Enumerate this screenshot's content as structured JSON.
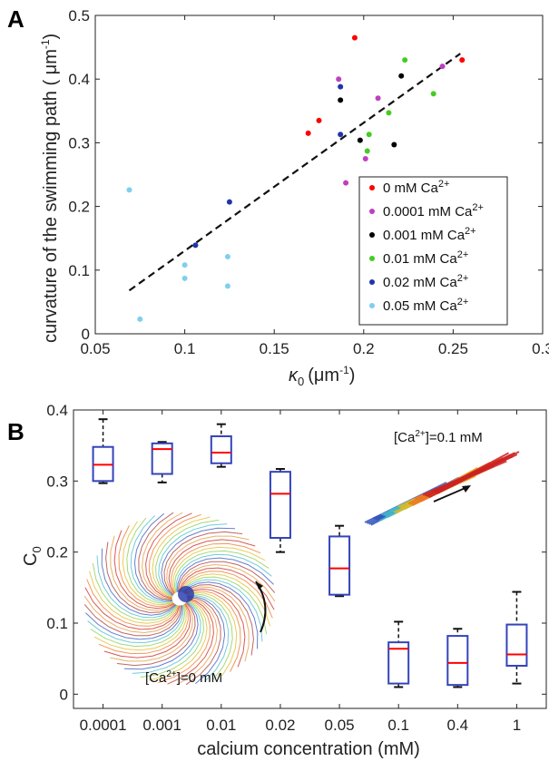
{
  "panels": {
    "a": "A",
    "b": "B"
  },
  "chart_data": [
    {
      "type": "scatter",
      "panel": "A",
      "xlabel_symbol": "κ",
      "xlabel_sub": "0",
      "xlabel_unit": "(μm",
      "xlabel_exp": "-1",
      "xlabel_close": ")",
      "ylabel": "curvature of the swimming path ( μm",
      "ylabel_exp": "-1",
      "ylabel_close": ")",
      "xlim": [
        0.05,
        0.3
      ],
      "ylim": [
        0,
        0.5
      ],
      "xticks": [
        "0.05",
        "0.1",
        "0.15",
        "0.2",
        "0.25",
        "0.3"
      ],
      "yticks": [
        "0",
        "0.1",
        "0.2",
        "0.3",
        "0.4",
        "0.5"
      ],
      "legend_position": "right",
      "grid": false,
      "series": [
        {
          "name": "0 mM Ca",
          "sup": "2+",
          "color": "#ff0000",
          "points": [
            [
              0.169,
              0.315
            ],
            [
              0.175,
              0.335
            ],
            [
              0.195,
              0.465
            ],
            [
              0.255,
              0.43
            ]
          ]
        },
        {
          "name": "0.0001 mM Ca",
          "sup": "2+",
          "color": "#bf40bf",
          "points": [
            [
              0.186,
              0.4
            ],
            [
              0.19,
              0.237
            ],
            [
              0.201,
              0.275
            ],
            [
              0.208,
              0.37
            ],
            [
              0.244,
              0.42
            ]
          ]
        },
        {
          "name": "0.001 mM Ca",
          "sup": "2+",
          "color": "#000000",
          "points": [
            [
              0.187,
              0.367
            ],
            [
              0.198,
              0.304
            ],
            [
              0.217,
              0.297
            ],
            [
              0.221,
              0.405
            ]
          ]
        },
        {
          "name": "0.01 mM Ca",
          "sup": "2+",
          "color": "#44cc22",
          "points": [
            [
              0.202,
              0.287
            ],
            [
              0.203,
              0.313
            ],
            [
              0.214,
              0.347
            ],
            [
              0.223,
              0.43
            ],
            [
              0.239,
              0.377
            ]
          ]
        },
        {
          "name": "0.02 mM Ca",
          "sup": "2+",
          "color": "#2233aa",
          "points": [
            [
              0.106,
              0.139
            ],
            [
              0.125,
              0.207
            ],
            [
              0.187,
              0.388
            ],
            [
              0.187,
              0.313
            ]
          ]
        },
        {
          "name": "0.05 mM Ca",
          "sup": "2+",
          "color": "#7fcfee",
          "points": [
            [
              0.069,
              0.226
            ],
            [
              0.075,
              0.023
            ],
            [
              0.1,
              0.108
            ],
            [
              0.1,
              0.087
            ],
            [
              0.124,
              0.121
            ],
            [
              0.124,
              0.075
            ]
          ]
        }
      ],
      "fit_line": {
        "style": "dashed",
        "points": [
          [
            0.069,
            0.068
          ],
          [
            0.254,
            0.44
          ]
        ]
      }
    },
    {
      "type": "box",
      "panel": "B",
      "ylabel": "C",
      "ylabel_sub": "0",
      "xlabel": "calcium concentration (mM)",
      "ylim": [
        -0.02,
        0.4
      ],
      "yticks": [
        "0",
        "0.1",
        "0.2",
        "0.3",
        "0.4"
      ],
      "categories": [
        "0.0001",
        "0.001",
        "0.01",
        "0.02",
        "0.05",
        "0.1",
        "0.4",
        "1"
      ],
      "box_color": "#3344bb",
      "median_color": "#ff0000",
      "boxes": [
        {
          "min": 0.297,
          "q1": 0.3,
          "median": 0.323,
          "q3": 0.348,
          "max": 0.387
        },
        {
          "min": 0.298,
          "q1": 0.31,
          "median": 0.345,
          "q3": 0.353,
          "max": 0.355
        },
        {
          "min": 0.32,
          "q1": 0.325,
          "median": 0.34,
          "q3": 0.363,
          "max": 0.38
        },
        {
          "min": 0.2,
          "q1": 0.22,
          "median": 0.282,
          "q3": 0.313,
          "max": 0.317
        },
        {
          "min": 0.138,
          "q1": 0.14,
          "median": 0.177,
          "q3": 0.222,
          "max": 0.237
        },
        {
          "min": 0.01,
          "q1": 0.015,
          "median": 0.064,
          "q3": 0.073,
          "max": 0.102
        },
        {
          "min": 0.01,
          "q1": 0.013,
          "median": 0.044,
          "q3": 0.082,
          "max": 0.092
        },
        {
          "min": 0.015,
          "q1": 0.04,
          "median": 0.056,
          "q3": 0.098,
          "max": 0.144
        }
      ],
      "annotations": [
        {
          "text_pre": "[Ca",
          "sup": "2+",
          "text_post": "]=0.1 mM"
        },
        {
          "text_pre": "[Ca",
          "sup": "2+",
          "text_post": "]=0 mM"
        }
      ]
    }
  ]
}
